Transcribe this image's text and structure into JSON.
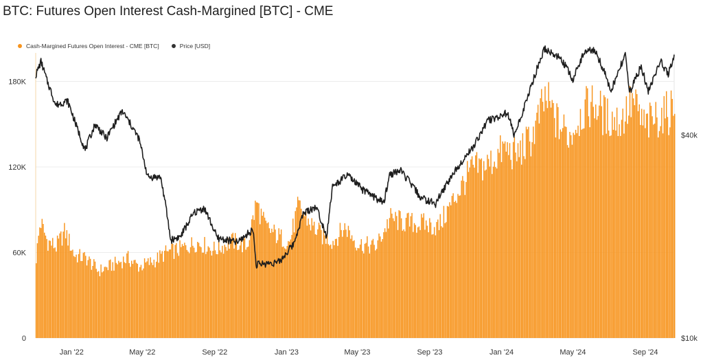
{
  "title": "BTC: Futures Open Interest Cash-Margined [BTC] - CME",
  "colors": {
    "bar": "#f7941d",
    "line": "#1e1e1e",
    "grid": "#ececec"
  },
  "legend": [
    {
      "label": "Cash-Margined Futures Open Interest - CME [BTC]",
      "color": "#f7941d"
    },
    {
      "label": "Price [USD]",
      "color": "#333333"
    }
  ],
  "chart_data": {
    "type": "bar+line",
    "x_range": [
      "2021-11-01",
      "2024-10-20"
    ],
    "x_ticks": [
      "Jan '22",
      "May '22",
      "Sep '22",
      "Jan '23",
      "May '23",
      "Sep '23",
      "Jan '24",
      "May '24",
      "Sep '24"
    ],
    "y_left": {
      "ticks": [
        "0",
        "60K",
        "120K",
        "180K"
      ],
      "ylim": [
        0,
        200000
      ],
      "scale": "linear"
    },
    "y_right": {
      "ticks": [
        "$10k",
        "$40k"
      ],
      "ylim": [
        10000,
        70000
      ],
      "scale": "log"
    },
    "legend_position": "top-left",
    "grid": true,
    "series": [
      {
        "name": "Cash-Margined Futures Open Interest - CME [BTC]",
        "kind": "bar",
        "points": [
          [
            "2021-11-01",
            56000
          ],
          [
            "2021-11-08",
            82000
          ],
          [
            "2021-11-20",
            68000
          ],
          [
            "2021-12-05",
            64000
          ],
          [
            "2021-12-20",
            75000
          ],
          [
            "2022-01-05",
            58000
          ],
          [
            "2022-01-25",
            56000
          ],
          [
            "2022-02-15",
            47000
          ],
          [
            "2022-03-10",
            51000
          ],
          [
            "2022-04-05",
            56000
          ],
          [
            "2022-04-25",
            50000
          ],
          [
            "2022-05-20",
            54000
          ],
          [
            "2022-06-10",
            60000
          ],
          [
            "2022-07-01",
            62000
          ],
          [
            "2022-08-01",
            67000
          ],
          [
            "2022-09-01",
            62000
          ],
          [
            "2022-10-01",
            68000
          ],
          [
            "2022-10-25",
            64000
          ],
          [
            "2022-11-10",
            95000
          ],
          [
            "2022-11-25",
            78000
          ],
          [
            "2022-12-15",
            72000
          ],
          [
            "2023-01-05",
            67000
          ],
          [
            "2023-01-20",
            92000
          ],
          [
            "2023-02-10",
            80000
          ],
          [
            "2023-03-01",
            72000
          ],
          [
            "2023-03-20",
            68000
          ],
          [
            "2023-04-10",
            78000
          ],
          [
            "2023-05-01",
            66000
          ],
          [
            "2023-06-01",
            64000
          ],
          [
            "2023-06-25",
            84000
          ],
          [
            "2023-07-20",
            81000
          ],
          [
            "2023-08-20",
            80000
          ],
          [
            "2023-09-15",
            78000
          ],
          [
            "2023-10-15",
            100000
          ],
          [
            "2023-11-10",
            118000
          ],
          [
            "2023-12-10",
            122000
          ],
          [
            "2024-01-05",
            133000
          ],
          [
            "2024-01-25",
            128000
          ],
          [
            "2024-02-20",
            140000
          ],
          [
            "2024-03-15",
            168000
          ],
          [
            "2024-04-05",
            150000
          ],
          [
            "2024-04-25",
            142000
          ],
          [
            "2024-05-15",
            158000
          ],
          [
            "2024-06-05",
            165000
          ],
          [
            "2024-06-25",
            155000
          ],
          [
            "2024-07-20",
            152000
          ],
          [
            "2024-08-10",
            166000
          ],
          [
            "2024-08-30",
            148000
          ],
          [
            "2024-09-20",
            155000
          ],
          [
            "2024-10-10",
            158000
          ],
          [
            "2024-10-20",
            166000
          ]
        ]
      },
      {
        "name": "Price [USD]",
        "kind": "line",
        "points": [
          [
            "2021-11-01",
            60000
          ],
          [
            "2021-11-10",
            66000
          ],
          [
            "2021-11-20",
            58000
          ],
          [
            "2021-12-05",
            49000
          ],
          [
            "2021-12-25",
            50500
          ],
          [
            "2022-01-10",
            42000
          ],
          [
            "2022-01-24",
            36000
          ],
          [
            "2022-02-10",
            43000
          ],
          [
            "2022-03-01",
            39000
          ],
          [
            "2022-03-28",
            47000
          ],
          [
            "2022-04-25",
            39000
          ],
          [
            "2022-05-10",
            30000
          ],
          [
            "2022-06-01",
            30000
          ],
          [
            "2022-06-18",
            19500
          ],
          [
            "2022-07-05",
            20000
          ],
          [
            "2022-07-28",
            23500
          ],
          [
            "2022-08-14",
            24300
          ],
          [
            "2022-09-05",
            19800
          ],
          [
            "2022-10-10",
            19200
          ],
          [
            "2022-11-05",
            21000
          ],
          [
            "2022-11-10",
            16500
          ],
          [
            "2022-12-20",
            16800
          ],
          [
            "2023-01-13",
            19000
          ],
          [
            "2023-01-30",
            23500
          ],
          [
            "2023-02-20",
            24500
          ],
          [
            "2023-03-10",
            20000
          ],
          [
            "2023-03-20",
            28000
          ],
          [
            "2023-04-14",
            30400
          ],
          [
            "2023-05-10",
            27500
          ],
          [
            "2023-06-15",
            25100
          ],
          [
            "2023-06-25",
            30500
          ],
          [
            "2023-07-13",
            31400
          ],
          [
            "2023-08-17",
            26000
          ],
          [
            "2023-09-11",
            25000
          ],
          [
            "2023-10-23",
            33000
          ],
          [
            "2023-11-15",
            37000
          ],
          [
            "2023-12-08",
            44000
          ],
          [
            "2024-01-11",
            46500
          ],
          [
            "2024-01-23",
            39500
          ],
          [
            "2024-02-15",
            52000
          ],
          [
            "2024-03-14",
            72000
          ],
          [
            "2024-04-12",
            67000
          ],
          [
            "2024-05-01",
            58000
          ],
          [
            "2024-05-21",
            71000
          ],
          [
            "2024-06-07",
            71500
          ],
          [
            "2024-07-05",
            54000
          ],
          [
            "2024-07-29",
            69000
          ],
          [
            "2024-08-05",
            53000
          ],
          [
            "2024-08-25",
            64000
          ],
          [
            "2024-09-06",
            53500
          ],
          [
            "2024-09-27",
            66000
          ],
          [
            "2024-10-10",
            60500
          ],
          [
            "2024-10-20",
            69000
          ]
        ]
      }
    ]
  }
}
